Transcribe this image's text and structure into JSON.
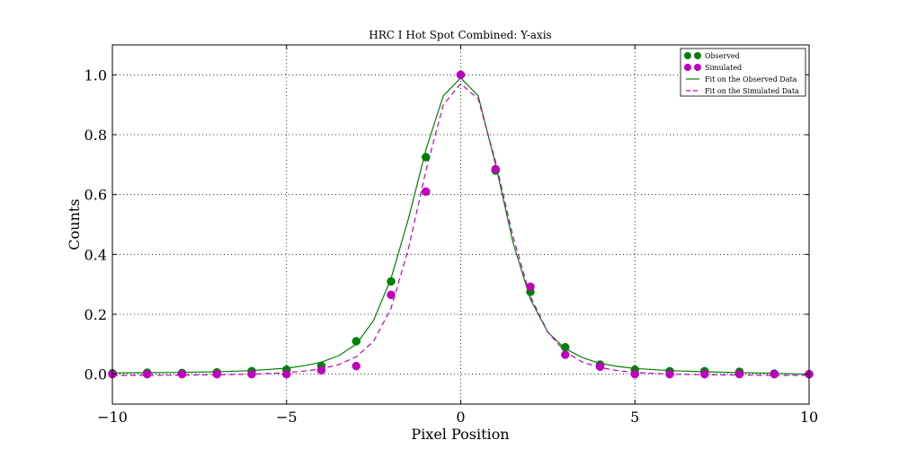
{
  "chart_data": {
    "type": "scatter",
    "title": "HRC I Hot Spot Combined: Y-axis",
    "xlabel": "Pixel Position",
    "ylabel": "Counts",
    "xlim": [
      -10,
      10
    ],
    "ylim": [
      -0.1,
      1.1
    ],
    "xticks": [
      -10,
      -5,
      0,
      5,
      10
    ],
    "xtick_labels": [
      "−10",
      "−5",
      "0",
      "5",
      "10"
    ],
    "yticks": [
      0.0,
      0.2,
      0.4,
      0.6,
      0.8,
      1.0
    ],
    "ytick_labels": [
      "0.0",
      "0.2",
      "0.4",
      "0.6",
      "0.8",
      "1.0"
    ],
    "grid": true,
    "legend_position": "top-right",
    "series": [
      {
        "name": "Observed",
        "kind": "points",
        "color": "#008000",
        "x": [
          -10,
          -9,
          -8,
          -7,
          -6,
          -5,
          -4,
          -3,
          -2,
          -1,
          0,
          1,
          2,
          3,
          4,
          5,
          6,
          7,
          8,
          9,
          10
        ],
        "y": [
          0.003,
          0.005,
          0.004,
          0.006,
          0.01,
          0.015,
          0.028,
          0.11,
          0.31,
          0.725,
          1.0,
          0.68,
          0.275,
          0.09,
          0.032,
          0.015,
          0.01,
          0.01,
          0.008,
          0.002,
          0.0
        ]
      },
      {
        "name": "Simulated",
        "kind": "points",
        "color": "#bf00bf",
        "x": [
          -10,
          -9,
          -8,
          -7,
          -6,
          -5,
          -4,
          -3,
          -2,
          -1,
          0,
          1,
          2,
          3,
          4,
          5,
          6,
          7,
          8,
          9,
          10
        ],
        "y": [
          0.0,
          0.0,
          0.0,
          0.0,
          0.0,
          0.0,
          0.013,
          0.027,
          0.265,
          0.61,
          1.0,
          0.685,
          0.292,
          0.065,
          0.025,
          0.0,
          0.0,
          0.0,
          0.0,
          0.0,
          0.0
        ]
      },
      {
        "name": "Fit on the Observed Data",
        "kind": "line",
        "style": "solid",
        "color": "#008000",
        "x": [
          -10,
          -9,
          -8,
          -7,
          -6,
          -5,
          -4.5,
          -4,
          -3.5,
          -3,
          -2.5,
          -2,
          -1.5,
          -1,
          -0.5,
          0,
          0.5,
          1,
          1.5,
          2,
          2.5,
          3,
          3.5,
          4,
          4.5,
          5,
          6,
          7,
          8,
          9,
          10
        ],
        "y": [
          0.004,
          0.005,
          0.006,
          0.008,
          0.012,
          0.02,
          0.028,
          0.04,
          0.062,
          0.1,
          0.18,
          0.32,
          0.52,
          0.75,
          0.93,
          0.99,
          0.93,
          0.7,
          0.44,
          0.25,
          0.14,
          0.085,
          0.055,
          0.036,
          0.026,
          0.019,
          0.012,
          0.008,
          0.005,
          0.003,
          0.0
        ]
      },
      {
        "name": "Fit on the Simulated Data",
        "kind": "line",
        "style": "dashed",
        "color": "#bf00bf",
        "x": [
          -10,
          -9,
          -8,
          -7,
          -6,
          -5,
          -4.5,
          -4,
          -3.5,
          -3,
          -2.5,
          -2,
          -1.5,
          -1,
          -0.5,
          0,
          0.5,
          1,
          1.5,
          2,
          2.5,
          3,
          3.5,
          4,
          4.5,
          5,
          6,
          7,
          8,
          9,
          10
        ],
        "y": [
          -0.004,
          -0.004,
          -0.003,
          -0.002,
          0.0,
          0.005,
          0.01,
          0.018,
          0.032,
          0.058,
          0.11,
          0.22,
          0.42,
          0.68,
          0.9,
          0.97,
          0.92,
          0.71,
          0.46,
          0.26,
          0.14,
          0.075,
          0.04,
          0.022,
          0.012,
          0.006,
          0.0,
          -0.002,
          -0.003,
          -0.004,
          -0.004
        ]
      }
    ]
  }
}
